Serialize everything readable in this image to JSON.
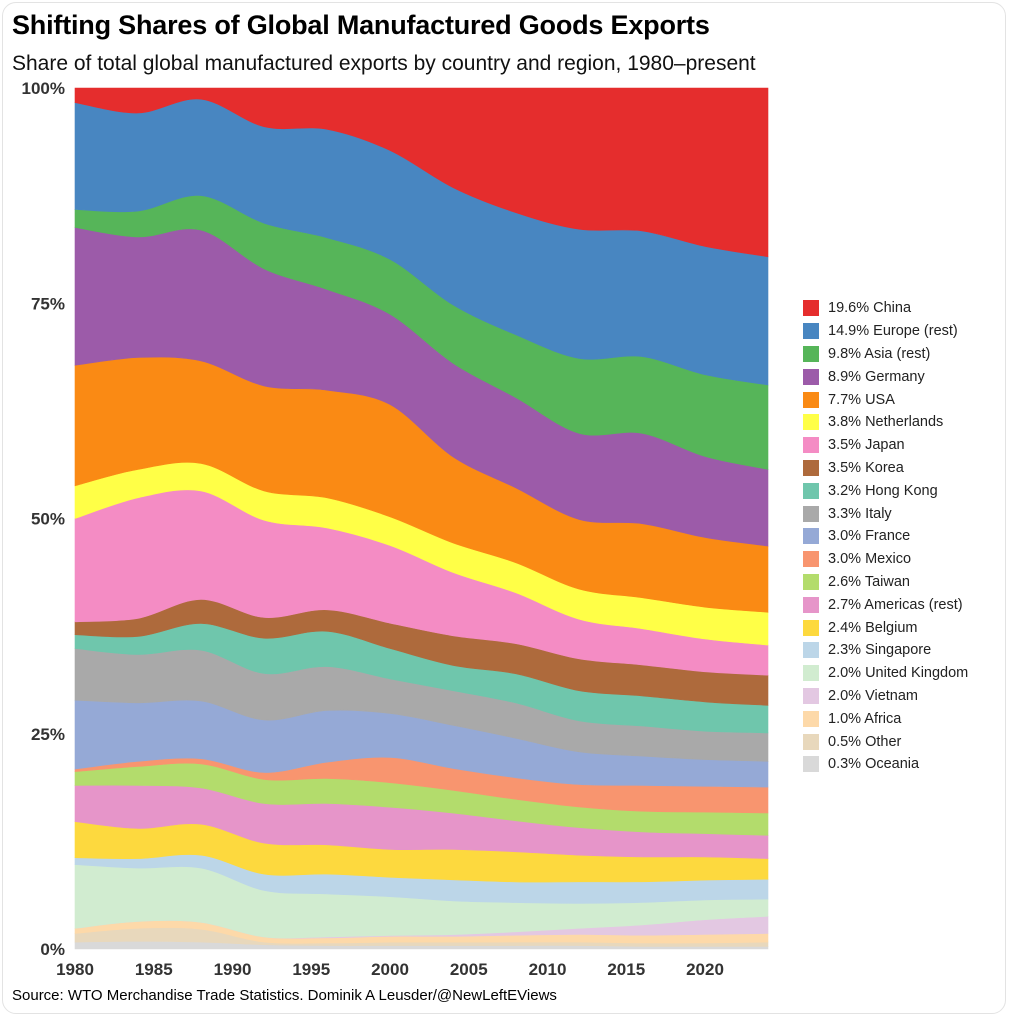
{
  "chart_data": {
    "type": "area",
    "stacked": true,
    "title": "Shifting Shares of Global Manufactured Goods Exports",
    "subtitle": "Share of total global manufactured exports by country and region, 1980–present",
    "source": "Source: WTO Merchandise Trade Statistics. Dominik A Leusder/@NewLeftEViews",
    "xlabel": "",
    "ylabel": "",
    "xlim": [
      1980,
      2024
    ],
    "ylim": [
      0,
      100
    ],
    "x_ticks": [
      1980,
      1985,
      1990,
      1995,
      2000,
      2005,
      2010,
      2015,
      2020
    ],
    "y_ticks": [
      0,
      25,
      50,
      75,
      100
    ],
    "y_tick_labels": [
      "0%",
      "25%",
      "50%",
      "75%",
      "100%"
    ],
    "legend_position": "right",
    "x": [
      1980,
      1984,
      1988,
      1992,
      1996,
      2000,
      2004,
      2008,
      2012,
      2016,
      2020,
      2024
    ],
    "series": [
      {
        "name": "Oceania",
        "legend": "0.3% Oceania",
        "color": "#d9d9d9",
        "values": [
          0.8,
          0.9,
          0.8,
          0.5,
          0.4,
          0.4,
          0.4,
          0.4,
          0.4,
          0.3,
          0.3,
          0.3
        ]
      },
      {
        "name": "Other",
        "legend": "0.5% Other",
        "color": "#e8d8bc",
        "values": [
          1.0,
          1.5,
          1.5,
          0.3,
          0.3,
          0.4,
          0.4,
          0.4,
          0.4,
          0.4,
          0.4,
          0.5
        ]
      },
      {
        "name": "Africa",
        "legend": "1.0% Africa",
        "color": "#fdd9a9",
        "values": [
          0.6,
          0.8,
          0.8,
          0.6,
          0.6,
          0.7,
          0.7,
          0.8,
          0.9,
          0.9,
          1.0,
          1.0
        ]
      },
      {
        "name": "Vietnam",
        "legend": "2.0% Vietnam",
        "color": "#e3c8e2",
        "values": [
          0.0,
          0.0,
          0.0,
          0.0,
          0.1,
          0.1,
          0.2,
          0.4,
          0.7,
          1.2,
          1.7,
          2.0
        ]
      },
      {
        "name": "United Kingdom",
        "legend": "2.0% United Kingdom",
        "color": "#d1ecd0",
        "values": [
          7.4,
          6.2,
          6.3,
          5.4,
          5.0,
          4.6,
          4.0,
          3.4,
          2.9,
          2.6,
          2.3,
          2.0
        ]
      },
      {
        "name": "Singapore",
        "legend": "2.3% Singapore",
        "color": "#bcd6e8",
        "values": [
          0.8,
          1.1,
          1.5,
          1.9,
          2.3,
          2.3,
          2.5,
          2.4,
          2.5,
          2.4,
          2.3,
          2.3
        ]
      },
      {
        "name": "Belgium",
        "legend": "2.4% Belgium",
        "color": "#fdd93e",
        "values": [
          4.2,
          3.5,
          3.6,
          3.6,
          3.4,
          3.3,
          3.6,
          3.5,
          3.1,
          2.9,
          2.7,
          2.4
        ]
      },
      {
        "name": "Americas (rest)",
        "legend": "2.7% Americas (rest)",
        "color": "#e695c9",
        "values": [
          4.2,
          5.0,
          4.2,
          4.6,
          4.8,
          5.0,
          4.3,
          3.6,
          3.2,
          2.9,
          2.7,
          2.7
        ]
      },
      {
        "name": "Taiwan",
        "legend": "2.6% Taiwan",
        "color": "#b3dc6c",
        "values": [
          1.6,
          2.2,
          2.8,
          2.8,
          2.9,
          2.9,
          2.7,
          2.5,
          2.4,
          2.4,
          2.5,
          2.6
        ]
      },
      {
        "name": "Mexico",
        "legend": "3.0% Mexico",
        "color": "#f8956f",
        "values": [
          0.3,
          0.6,
          0.6,
          0.8,
          1.9,
          3.0,
          2.6,
          2.5,
          2.6,
          3.0,
          3.0,
          3.0
        ]
      },
      {
        "name": "France",
        "legend": "3.0% France",
        "color": "#95a9d6",
        "values": [
          8.0,
          6.8,
          6.7,
          6.1,
          6.0,
          5.2,
          5.1,
          4.6,
          3.8,
          3.4,
          3.1,
          3.0
        ]
      },
      {
        "name": "Italy",
        "legend": "3.3% Italy",
        "color": "#a9a9a9",
        "values": [
          6.0,
          5.6,
          5.9,
          5.4,
          5.1,
          4.1,
          4.1,
          4.1,
          3.6,
          3.5,
          3.3,
          3.3
        ]
      },
      {
        "name": "Hong Kong",
        "legend": "3.2% Hong Kong",
        "color": "#6fc6ac",
        "values": [
          1.6,
          2.1,
          3.1,
          4.1,
          4.1,
          3.6,
          3.0,
          3.4,
          3.5,
          3.5,
          3.4,
          3.2
        ]
      },
      {
        "name": "Korea",
        "legend": "3.5% Korea",
        "color": "#ae6a3c",
        "values": [
          1.5,
          2.1,
          2.8,
          2.4,
          2.5,
          3.0,
          3.5,
          3.5,
          3.7,
          3.6,
          3.5,
          3.5
        ]
      },
      {
        "name": "Japan",
        "legend": "3.5% Japan",
        "color": "#f48cc4",
        "values": [
          12.0,
          14.0,
          12.6,
          11.3,
          9.5,
          9.2,
          7.5,
          5.9,
          4.6,
          4.2,
          3.8,
          3.5
        ]
      },
      {
        "name": "Netherlands",
        "legend": "3.8% Netherlands",
        "color": "#ffff47",
        "values": [
          3.8,
          3.3,
          3.2,
          3.4,
          3.5,
          3.4,
          3.5,
          3.5,
          3.5,
          3.6,
          3.7,
          3.8
        ]
      },
      {
        "name": "USA",
        "legend": "7.7% USA",
        "color": "#fa8a14",
        "values": [
          14.0,
          13.0,
          11.9,
          12.2,
          12.5,
          13.3,
          10.2,
          8.7,
          8.1,
          8.6,
          8.1,
          7.7
        ]
      },
      {
        "name": "Germany",
        "legend": "8.9% Germany",
        "color": "#9c5ba9",
        "values": [
          16.0,
          14.0,
          15.2,
          13.6,
          11.7,
          10.7,
          11.1,
          10.5,
          10.0,
          10.5,
          9.4,
          8.9
        ]
      },
      {
        "name": "Asia (rest)",
        "legend": "9.8% Asia (rest)",
        "color": "#56b559",
        "values": [
          2.1,
          3.0,
          4.0,
          5.3,
          6.0,
          6.5,
          6.9,
          7.3,
          8.7,
          8.9,
          9.5,
          9.8
        ]
      },
      {
        "name": "Europe (rest)",
        "legend": "14.9% Europe (rest)",
        "color": "#4886c1",
        "values": [
          12.4,
          11.4,
          11.2,
          11.2,
          12.6,
          12.9,
          13.9,
          14.2,
          15.0,
          14.6,
          14.9,
          14.9
        ]
      },
      {
        "name": "China",
        "legend": "19.6% China",
        "color": "#e52d2d",
        "values": [
          1.7,
          2.9,
          1.3,
          4.5,
          4.8,
          7.4,
          11.8,
          14.5,
          16.4,
          16.6,
          18.4,
          19.6
        ]
      }
    ],
    "legend_order": [
      "China",
      "Europe (rest)",
      "Asia (rest)",
      "Germany",
      "USA",
      "Netherlands",
      "Japan",
      "Korea",
      "Hong Kong",
      "Italy",
      "France",
      "Mexico",
      "Taiwan",
      "Americas (rest)",
      "Belgium",
      "Singapore",
      "United Kingdom",
      "Vietnam",
      "Africa",
      "Other",
      "Oceania"
    ]
  }
}
